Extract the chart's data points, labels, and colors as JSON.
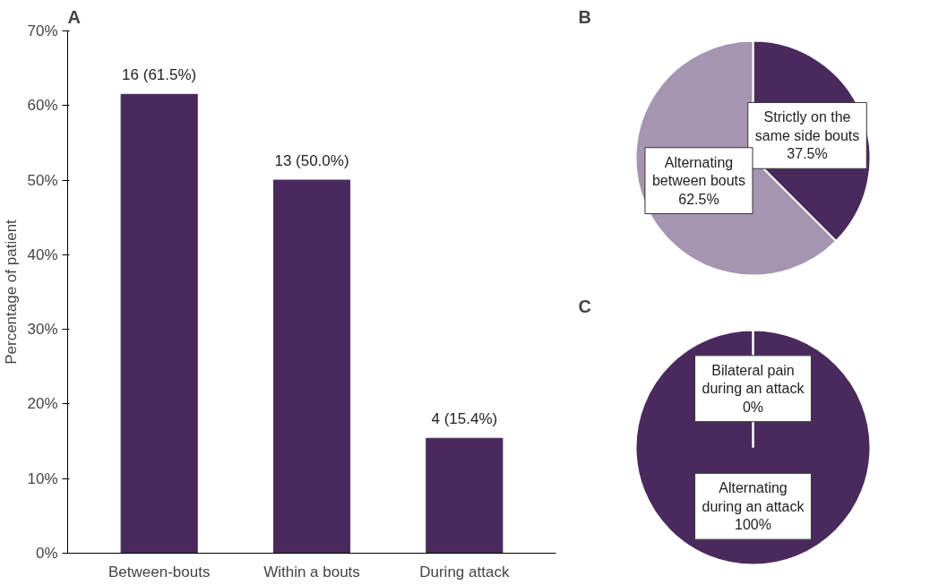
{
  "chart_data": [
    {
      "type": "bar",
      "title": "A",
      "ylabel": "Percentage of patient",
      "categories": [
        "Between-bouts",
        "Within a bouts",
        "During attack"
      ],
      "values": [
        61.5,
        50.0,
        15.4
      ],
      "color": "#4a2a5c",
      "value_labels": [
        "16 (61.5%)",
        "13 (50.0%)",
        "4 (15.4%)"
      ],
      "ylim": [
        0,
        70
      ],
      "yticks": [
        {
          "value": 0,
          "label": "0%"
        },
        {
          "value": 10,
          "label": "10%"
        },
        {
          "value": 20,
          "label": "20%"
        },
        {
          "value": 30,
          "label": "30%"
        },
        {
          "value": 40,
          "label": "40%"
        },
        {
          "value": 50,
          "label": "50%"
        },
        {
          "value": 60,
          "label": "60%"
        },
        {
          "value": 70,
          "label": "70%"
        }
      ],
      "grid": false
    },
    {
      "type": "pie",
      "title": "B",
      "categories": [
        "Strictly on the same side bouts",
        "Alternating between bouts"
      ],
      "values": [
        37.5,
        62.5
      ],
      "colors": [
        "#4a2a5c",
        "#a695b0"
      ],
      "value_labels": [
        "37.5%",
        "62.5%"
      ]
    },
    {
      "type": "pie",
      "title": "C",
      "categories": [
        "Bilateral pain during an attack",
        "Alternating during an attack"
      ],
      "values": [
        0,
        100
      ],
      "colors": [
        "#4a2a5c",
        "#4a2a5c"
      ],
      "value_labels": [
        "0%",
        "100%"
      ]
    }
  ]
}
